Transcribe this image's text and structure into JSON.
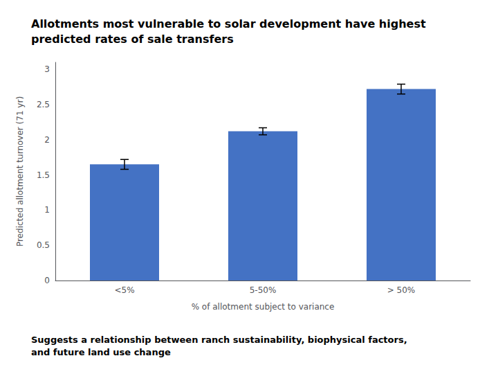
{
  "chart_data": {
    "type": "bar",
    "title": "Allotments most vulnerable to solar development have highest\npredicted rates of sale transfers",
    "categories": [
      "<5%",
      "5-50%",
      "> 50%"
    ],
    "values": [
      1.65,
      2.12,
      2.72
    ],
    "errors": [
      0.07,
      0.05,
      0.07
    ],
    "color": "#4472C4",
    "ylabel": "Predicted allotment turnover (71 yr)",
    "xlabel": "% of allotment subject to variance",
    "ylim": [
      0,
      3.1
    ],
    "yticks": [
      0,
      0.5,
      1,
      1.5,
      2,
      2.5,
      3
    ],
    "annotations": [
      "Suggests a relationship between ranch sustainability, biophysical factors,\nand future land use change"
    ],
    "grid": false
  }
}
